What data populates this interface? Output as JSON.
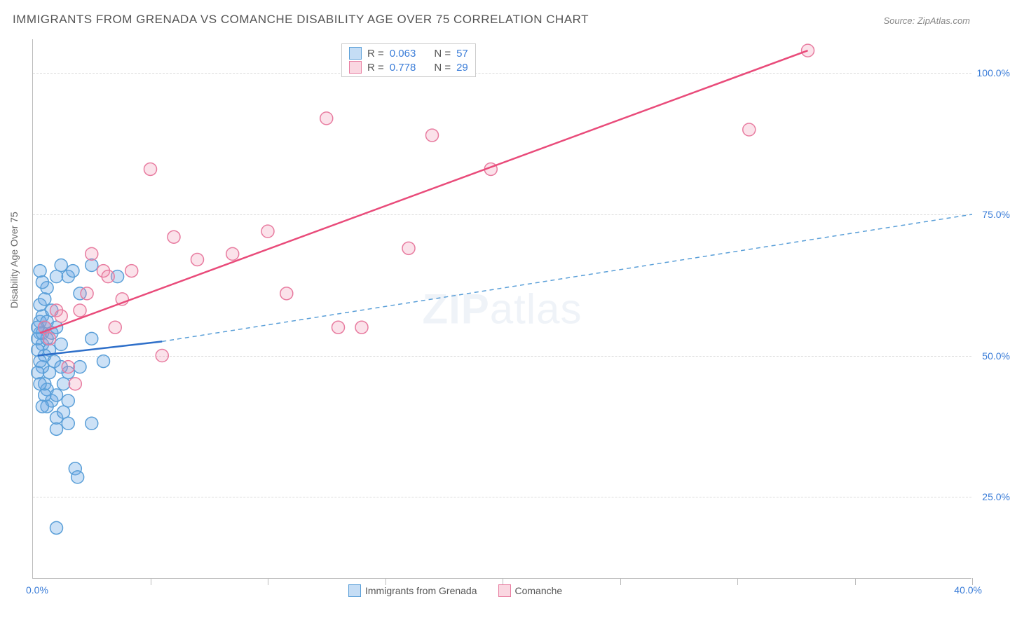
{
  "title": "IMMIGRANTS FROM GRENADA VS COMANCHE DISABILITY AGE OVER 75 CORRELATION CHART",
  "source_label": "Source: ZipAtlas.com",
  "y_axis_label": "Disability Age Over 75",
  "watermark": "ZIPatlas",
  "chart": {
    "type": "scatter",
    "xlim": [
      0,
      40
    ],
    "ylim": [
      10.5,
      106
    ],
    "x_ticks": [
      0,
      5,
      10,
      15,
      20,
      25,
      30,
      35,
      40
    ],
    "x_tick_labels": {
      "left": "0.0%",
      "right": "40.0%"
    },
    "y_gridlines": [
      25,
      50,
      75,
      100
    ],
    "y_tick_labels": [
      "25.0%",
      "50.0%",
      "75.0%",
      "100.0%"
    ],
    "background_color": "#ffffff",
    "grid_color": "#dcdcdc",
    "axis_color": "#bbbbbb",
    "marker_radius": 9,
    "series": [
      {
        "name": "Immigrants from Grenada",
        "color_fill": "rgba(110,170,230,0.35)",
        "color_stroke": "#5a9fd8",
        "R": "0.063",
        "N": "57",
        "trend": {
          "x1": 0.2,
          "y1": 50,
          "x2_solid": 5.5,
          "y2_solid": 52.5,
          "x2_dash": 40,
          "y2_dash": 75
        },
        "points": [
          [
            0.3,
            54
          ],
          [
            0.4,
            52
          ],
          [
            0.5,
            55
          ],
          [
            0.6,
            53
          ],
          [
            0.7,
            51
          ],
          [
            0.3,
            56
          ],
          [
            0.5,
            50
          ],
          [
            0.8,
            54
          ],
          [
            0.9,
            49
          ],
          [
            0.4,
            57
          ],
          [
            0.5,
            45
          ],
          [
            0.7,
            47
          ],
          [
            0.3,
            59
          ],
          [
            0.2,
            53
          ],
          [
            0.4,
            48
          ],
          [
            1.0,
            64
          ],
          [
            1.2,
            66
          ],
          [
            1.5,
            64
          ],
          [
            1.7,
            65
          ],
          [
            2.0,
            61
          ],
          [
            2.5,
            66
          ],
          [
            3.6,
            64
          ],
          [
            1.0,
            55
          ],
          [
            1.2,
            52
          ],
          [
            1.5,
            47
          ],
          [
            2.0,
            48
          ],
          [
            2.5,
            53
          ],
          [
            3.0,
            49
          ],
          [
            0.8,
            42
          ],
          [
            1.0,
            43
          ],
          [
            1.3,
            45
          ],
          [
            1.5,
            42
          ],
          [
            1.2,
            48
          ],
          [
            0.6,
            44
          ],
          [
            1.0,
            39
          ],
          [
            1.3,
            40
          ],
          [
            1.5,
            38
          ],
          [
            1.0,
            37
          ],
          [
            0.6,
            41
          ],
          [
            2.5,
            38
          ],
          [
            1.8,
            30
          ],
          [
            1.9,
            28.5
          ],
          [
            1.0,
            19.5
          ],
          [
            0.5,
            60
          ],
          [
            0.6,
            62
          ],
          [
            0.3,
            65
          ],
          [
            0.4,
            63
          ],
          [
            0.8,
            58
          ],
          [
            0.2,
            51
          ],
          [
            0.3,
            49
          ],
          [
            0.6,
            56
          ],
          [
            0.4,
            54
          ],
          [
            0.2,
            47
          ],
          [
            0.3,
            45
          ],
          [
            0.5,
            43
          ],
          [
            0.4,
            41
          ],
          [
            0.2,
            55
          ]
        ]
      },
      {
        "name": "Comanche",
        "color_fill": "rgba(240,140,170,0.25)",
        "color_stroke": "#e87ca0",
        "R": "0.778",
        "N": "29",
        "trend": {
          "x1": 0.3,
          "y1": 54,
          "x2": 33,
          "y2": 104
        },
        "points": [
          [
            0.5,
            55
          ],
          [
            0.7,
            53
          ],
          [
            1.0,
            58
          ],
          [
            1.2,
            57
          ],
          [
            1.5,
            48
          ],
          [
            1.8,
            45
          ],
          [
            2.0,
            58
          ],
          [
            2.3,
            61
          ],
          [
            2.5,
            68
          ],
          [
            3.0,
            65
          ],
          [
            3.2,
            64
          ],
          [
            3.5,
            55
          ],
          [
            3.8,
            60
          ],
          [
            4.2,
            65
          ],
          [
            5.0,
            83
          ],
          [
            5.5,
            50
          ],
          [
            6.0,
            71
          ],
          [
            7.0,
            67
          ],
          [
            8.5,
            68
          ],
          [
            10.0,
            72
          ],
          [
            10.8,
            61
          ],
          [
            12.5,
            92
          ],
          [
            13.0,
            55
          ],
          [
            14.0,
            55
          ],
          [
            16.0,
            69
          ],
          [
            17.0,
            89
          ],
          [
            19.5,
            83
          ],
          [
            30.5,
            90
          ],
          [
            33.0,
            104
          ]
        ]
      }
    ]
  },
  "stats_box": {
    "rows": [
      {
        "swatch": "blue",
        "r_label": "R =",
        "r_val": "0.063",
        "n_label": "N =",
        "n_val": "57"
      },
      {
        "swatch": "pink",
        "r_label": "R =",
        "r_val": "0.778",
        "n_label": "N =",
        "n_val": "29"
      }
    ]
  },
  "bottom_legend": [
    {
      "swatch": "blue",
      "label": "Immigrants from Grenada"
    },
    {
      "swatch": "pink",
      "label": "Comanche"
    }
  ]
}
